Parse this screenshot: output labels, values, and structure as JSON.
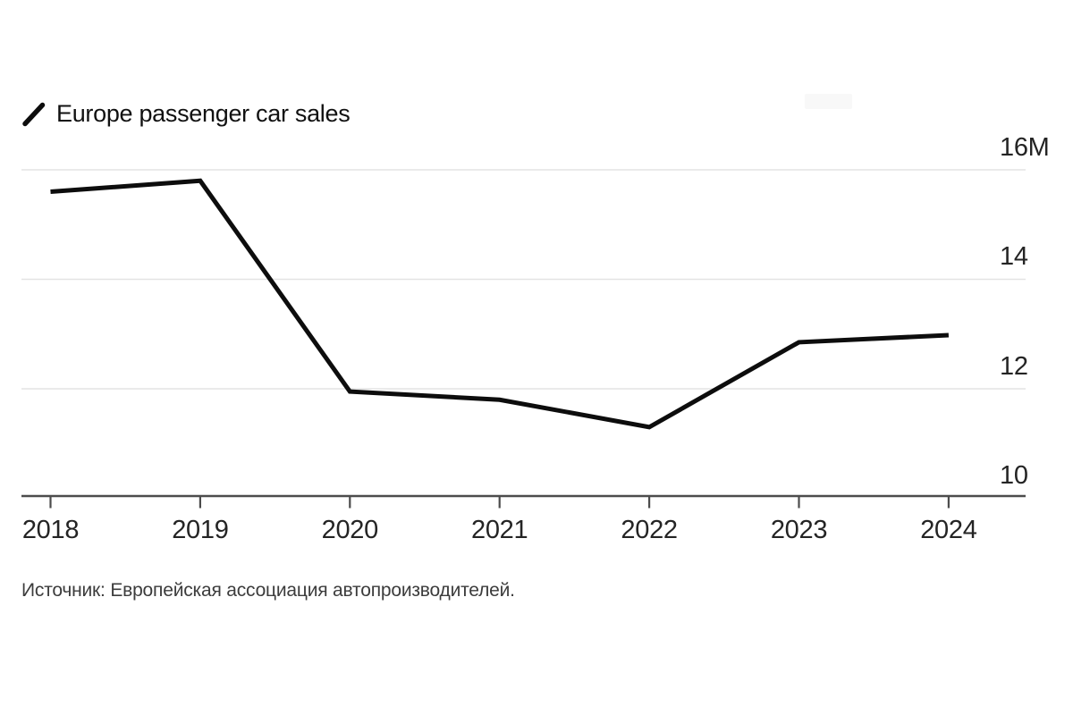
{
  "legend": {
    "label": "Europe passenger car sales",
    "marker": "line-slash-icon"
  },
  "source": {
    "text": "Источник: Европейская ассоциация автопроизводителей."
  },
  "colors": {
    "background": "#ffffff",
    "line": "#0d0d0d",
    "grid": "#e4e4e4",
    "axis": "#4c4c4c",
    "tick_label": "#242424",
    "source_text": "#3c3c3c"
  },
  "chart_data": {
    "type": "line",
    "title": "Europe passenger car sales",
    "categories": [
      "2018",
      "2019",
      "2020",
      "2021",
      "2022",
      "2023",
      "2024"
    ],
    "series": [
      {
        "name": "Europe passenger car sales",
        "values": [
          15.6,
          15.8,
          11.95,
          11.8,
          11.3,
          12.85,
          12.98
        ]
      }
    ],
    "unit": "M (millions of vehicles)",
    "xlabel": "",
    "ylabel": "",
    "ylim": [
      10,
      16
    ],
    "yticks": [
      16,
      14,
      12,
      10
    ],
    "ytick_labels": [
      "16M",
      "14",
      "12",
      "10"
    ],
    "grid": "horizontal-light",
    "legend_position": "top-left",
    "line_color": "#0d0d0d"
  }
}
